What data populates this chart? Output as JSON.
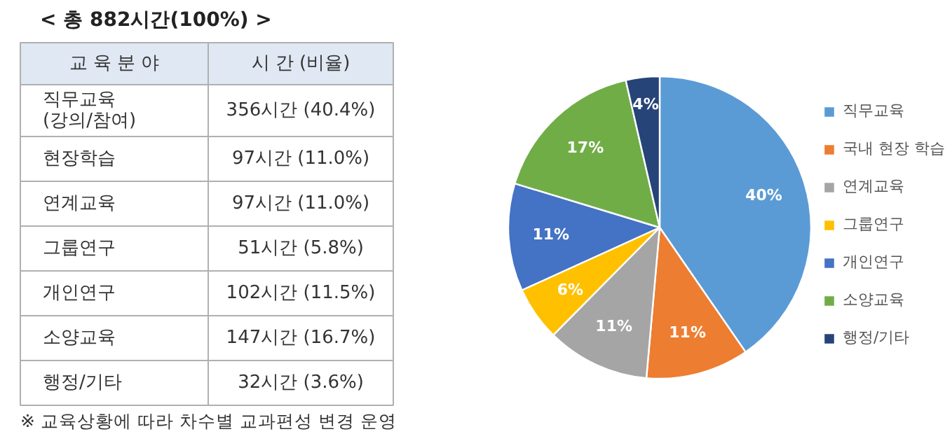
{
  "chart_data": [
    {
      "type": "other",
      "title": "< 총 882시간(100%) >",
      "xlabel": "교 육 분 야",
      "ylabel": "시 간 (비율)",
      "categories": [
        "직무교육\n(강의/참여)",
        "현장학습",
        "연계교육",
        "그룹연구",
        "개인연구",
        "소양교육",
        "행정/기타"
      ],
      "value_labels": [
        "356시간 (40.4%)",
        "97시간 (11.0%)",
        "97시간 (11.0%)",
        "51시간 (5.8%)",
        "102시간 (11.5%)",
        "147시간 (16.7%)",
        "32시간 (3.6%)"
      ],
      "annotations": [
        "※ 교육상황에 따라 차수별 교과편성 변경 운영"
      ]
    },
    {
      "type": "pie",
      "categories": [
        "직무교육",
        "국내 현장 학습",
        "연계교육",
        "그룹연구",
        "개인연구",
        "소양교육",
        "행정/기타"
      ],
      "values": [
        40.4,
        11.0,
        11.0,
        5.8,
        11.5,
        16.7,
        3.6
      ],
      "colors": [
        "#5b9bd5",
        "#ed7d31",
        "#a5a5a5",
        "#ffc000",
        "#4472c4",
        "#70ad47",
        "#264478"
      ],
      "value_labels": [
        "40%",
        "11%",
        "11%",
        "6%",
        "11%",
        "17%",
        "4%"
      ],
      "legend": "right"
    }
  ]
}
